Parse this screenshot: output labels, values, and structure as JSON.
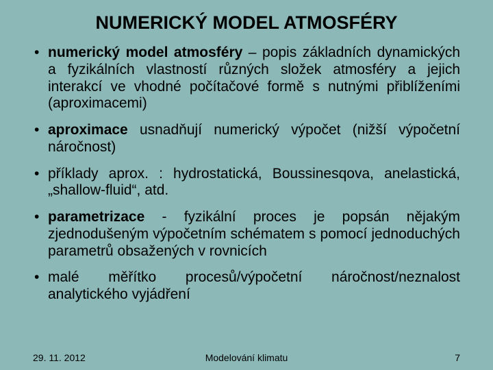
{
  "background_color": "#8cb8b8",
  "text_color": "#000000",
  "title": {
    "text": "NUMERICKÝ MODEL ATMOSFÉRY",
    "fontsize": 27
  },
  "bullets_fontsize": 21,
  "bullets_line_height": 1.18,
  "bullets": [
    {
      "bold": "numerický model atmosféry",
      "rest": " – popis základních dynamických a fyzikálních vlastností různých složek atmosféry a jejich interakcí ve vhodné počítačové formě s nutnými přiblíženími (aproximacemi)"
    },
    {
      "bold": "aproximace",
      "rest": " usnadňují numerický výpočet (nižší výpočetní náročnost)"
    },
    {
      "bold": "",
      "rest": "příklady aprox. : hydrostatická, Boussinesqova, anelastická, „shallow-fluid“, atd."
    },
    {
      "bold": "parametrizace",
      "rest": " - fyzikální proces je popsán nějakým zjednodušeným výpočetním schématem s pomocí jednoduchých parametrů obsažených v rovnicích"
    },
    {
      "bold": "",
      "rest": "malé měřítko procesů/výpočetní náročnost/neznalost analytického vyjádření"
    }
  ],
  "footer": {
    "date": "29. 11. 2012",
    "center": "Modelování klimatu",
    "page": "7",
    "fontsize": 14
  }
}
